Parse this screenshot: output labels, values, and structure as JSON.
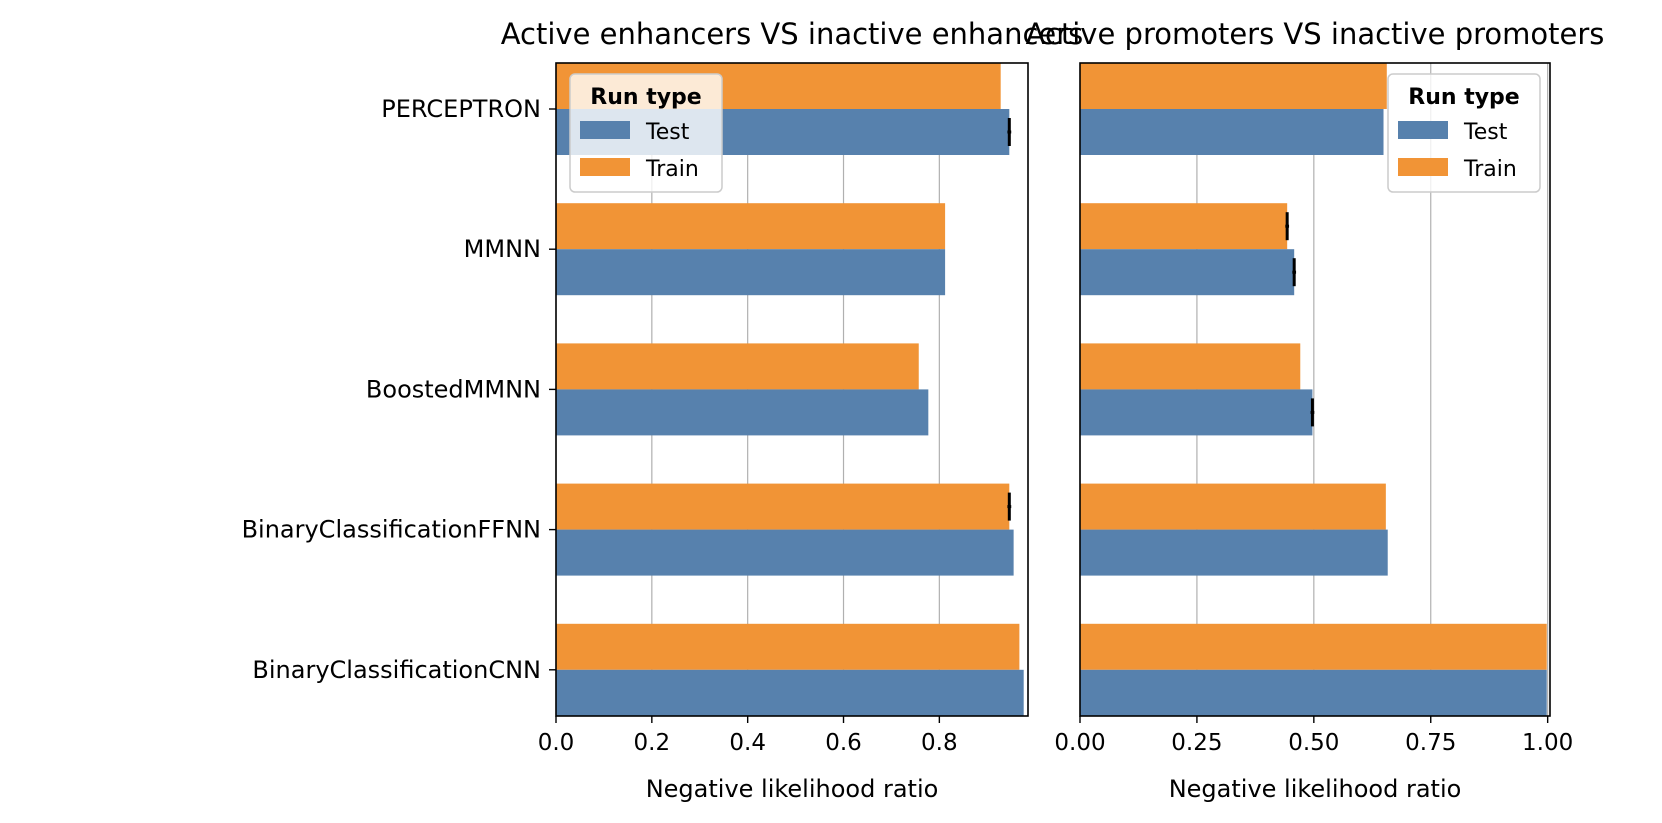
{
  "chart_data": [
    {
      "type": "bar",
      "orientation": "horizontal",
      "title": "Active enhancers VS inactive enhancers",
      "xlabel": "Negative likelihood ratio",
      "ylabel": "",
      "categories": [
        "PERCEPTRON",
        "MMNN",
        "BoostedMMNN",
        "BinaryClassificationFFNN",
        "BinaryClassificationCNN"
      ],
      "series": [
        {
          "name": "Train",
          "values": [
            0.928,
            0.812,
            0.757,
            0.946,
            0.967
          ],
          "error": [
            0,
            0,
            0,
            0.004,
            0
          ]
        },
        {
          "name": "Test",
          "values": [
            0.946,
            0.812,
            0.777,
            0.955,
            0.976
          ],
          "error": [
            0.004,
            0,
            0,
            0,
            0
          ]
        }
      ],
      "xlim": [
        0,
        0.985
      ],
      "xticks": [
        0.0,
        0.2,
        0.4,
        0.6,
        0.8
      ],
      "xtick_labels": [
        "0.0",
        "0.2",
        "0.4",
        "0.6",
        "0.8"
      ],
      "grid": "vertical",
      "legend": {
        "title": "Run type",
        "entries": [
          "Test",
          "Train"
        ],
        "placement": "top-left"
      }
    },
    {
      "type": "bar",
      "orientation": "horizontal",
      "title": "Active promoters VS inactive promoters",
      "xlabel": "Negative likelihood ratio",
      "ylabel": "",
      "categories": [
        "PERCEPTRON",
        "MMNN",
        "BoostedMMNN",
        "BinaryClassificationFFNN",
        "BinaryClassificationCNN"
      ],
      "series": [
        {
          "name": "Train",
          "values": [
            0.656,
            0.443,
            0.471,
            0.654,
            0.998
          ],
          "error": [
            0,
            0.004,
            0,
            0,
            0
          ]
        },
        {
          "name": "Test",
          "values": [
            0.649,
            0.458,
            0.497,
            0.658,
            0.998
          ],
          "error": [
            0,
            0.004,
            0.004,
            0,
            0
          ]
        }
      ],
      "xlim": [
        0,
        1.005
      ],
      "xticks": [
        0.0,
        0.25,
        0.5,
        0.75,
        1.0
      ],
      "xtick_labels": [
        "0.00",
        "0.25",
        "0.50",
        "0.75",
        "1.00"
      ],
      "grid": "vertical",
      "legend": {
        "title": "Run type",
        "entries": [
          "Test",
          "Train"
        ],
        "placement": "top-right"
      }
    }
  ],
  "colors": {
    "Test": "#5781ad",
    "Train": "#f19436",
    "grid": "#b0b0b0",
    "error_bar": "#000000"
  }
}
